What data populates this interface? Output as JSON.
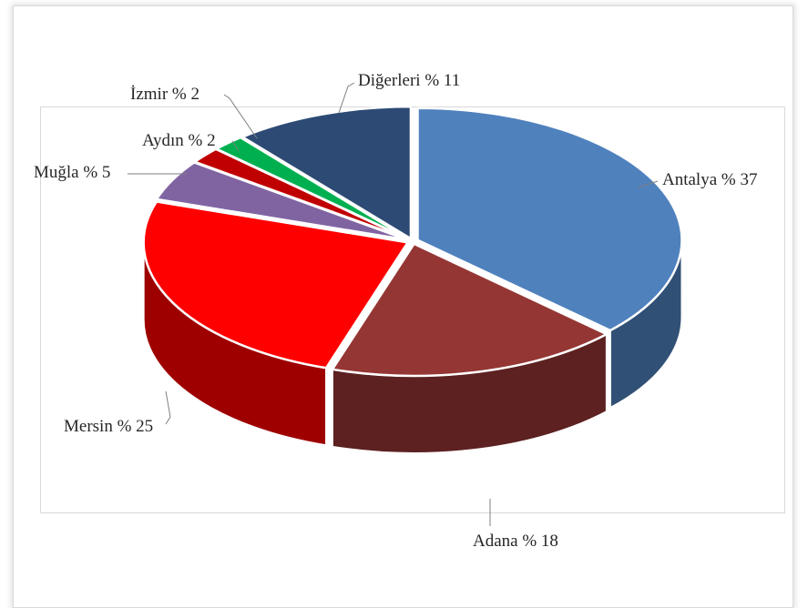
{
  "chart_data": {
    "type": "pie",
    "style": "3d-exploded",
    "categories": [
      "Antalya",
      "Adana",
      "Mersin",
      "Muğla",
      "Aydın",
      "İzmir",
      "Diğerleri"
    ],
    "values": [
      37,
      18,
      25,
      5,
      2,
      2,
      11
    ],
    "labels": [
      "Antalya % 37",
      "Adana % 18",
      "Mersin % 25",
      "Muğla % 5",
      "Aydın % 2",
      "İzmir % 2",
      "Diğerleri % 11"
    ],
    "colors": [
      "#4f81bd",
      "#943634",
      "#ff0000",
      "#8064a2",
      "#c00000",
      "#00b050",
      "#2c4a74"
    ],
    "title": "",
    "legend": "none"
  }
}
